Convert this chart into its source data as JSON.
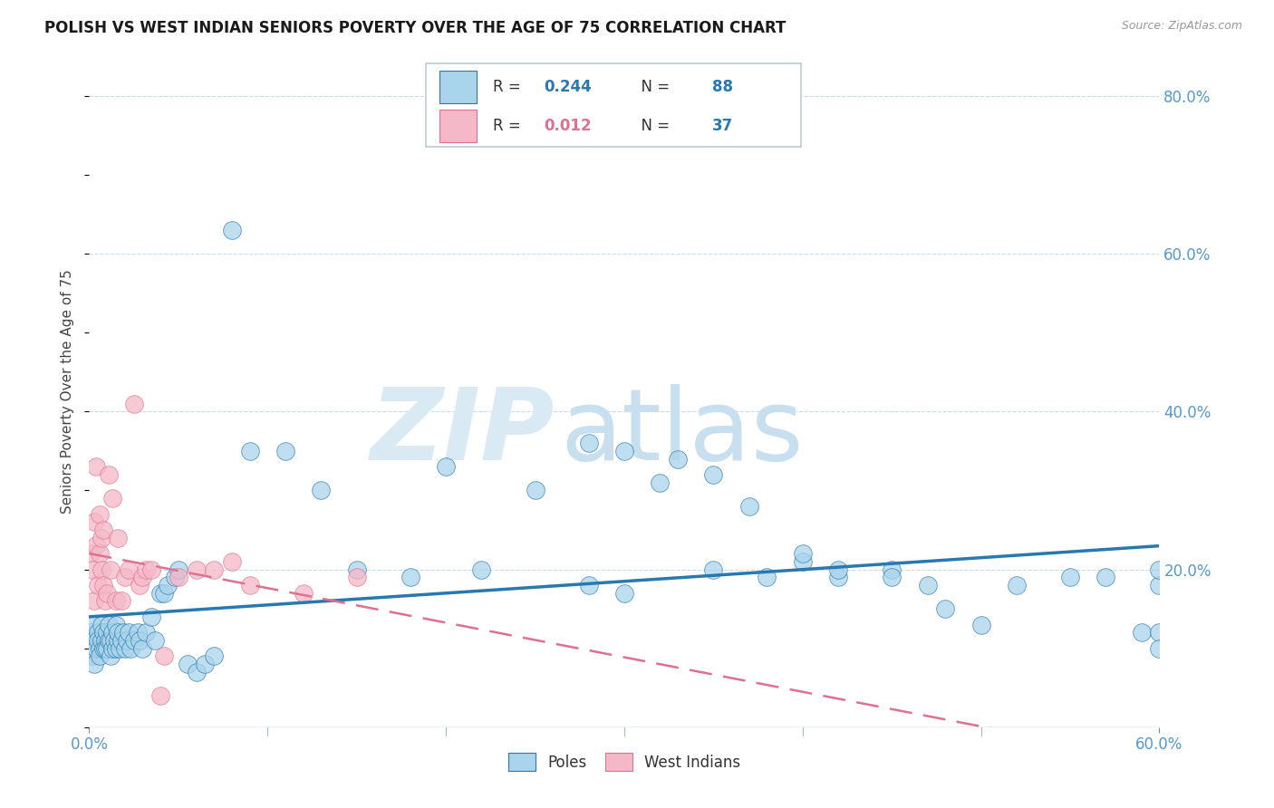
{
  "title": "POLISH VS WEST INDIAN SENIORS POVERTY OVER THE AGE OF 75 CORRELATION CHART",
  "source": "Source: ZipAtlas.com",
  "ylabel": "Seniors Poverty Over the Age of 75",
  "xlim": [
    0.0,
    0.6
  ],
  "ylim": [
    0.0,
    0.85
  ],
  "yticks": [
    0.0,
    0.2,
    0.4,
    0.6,
    0.8
  ],
  "poles_R": 0.244,
  "poles_N": 88,
  "west_indians_R": 0.012,
  "west_indians_N": 37,
  "poles_color": "#aad4ec",
  "west_indians_color": "#f5b8c8",
  "poles_line_color": "#2979b0",
  "west_indians_line_color": "#e07090",
  "poles_R_color": "#2979b0",
  "poles_N_color": "#2979b0",
  "west_indians_R_color": "#e07090",
  "west_indians_N_color": "#2979b0",
  "tick_color": "#5599cc",
  "background_color": "#ffffff",
  "watermark_zip_color": "#daeaf5",
  "watermark_atlas_color": "#c8dff0",
  "grid_color": "#c8dde8",
  "poles_x": [
    0.001,
    0.002,
    0.002,
    0.003,
    0.003,
    0.004,
    0.005,
    0.005,
    0.006,
    0.006,
    0.007,
    0.007,
    0.008,
    0.008,
    0.009,
    0.009,
    0.01,
    0.01,
    0.011,
    0.011,
    0.012,
    0.012,
    0.013,
    0.013,
    0.014,
    0.015,
    0.015,
    0.016,
    0.016,
    0.017,
    0.018,
    0.019,
    0.02,
    0.021,
    0.022,
    0.023,
    0.025,
    0.027,
    0.028,
    0.03,
    0.032,
    0.035,
    0.037,
    0.04,
    0.042,
    0.044,
    0.048,
    0.05,
    0.055,
    0.06,
    0.065,
    0.07,
    0.08,
    0.09,
    0.11,
    0.13,
    0.15,
    0.18,
    0.2,
    0.22,
    0.25,
    0.28,
    0.3,
    0.32,
    0.35,
    0.38,
    0.4,
    0.42,
    0.45,
    0.47,
    0.5,
    0.52,
    0.55,
    0.57,
    0.59,
    0.6,
    0.6,
    0.6,
    0.28,
    0.3,
    0.33,
    0.35,
    0.37,
    0.4,
    0.42,
    0.45,
    0.48,
    0.6
  ],
  "poles_y": [
    0.12,
    0.09,
    0.13,
    0.11,
    0.08,
    0.1,
    0.12,
    0.11,
    0.1,
    0.09,
    0.11,
    0.13,
    0.1,
    0.12,
    0.11,
    0.1,
    0.12,
    0.1,
    0.11,
    0.13,
    0.09,
    0.11,
    0.1,
    0.12,
    0.11,
    0.1,
    0.13,
    0.11,
    0.12,
    0.1,
    0.11,
    0.12,
    0.1,
    0.11,
    0.12,
    0.1,
    0.11,
    0.12,
    0.11,
    0.1,
    0.12,
    0.14,
    0.11,
    0.17,
    0.17,
    0.18,
    0.19,
    0.2,
    0.08,
    0.07,
    0.08,
    0.09,
    0.63,
    0.35,
    0.35,
    0.3,
    0.2,
    0.19,
    0.33,
    0.2,
    0.3,
    0.18,
    0.17,
    0.31,
    0.2,
    0.19,
    0.21,
    0.19,
    0.2,
    0.18,
    0.13,
    0.18,
    0.19,
    0.19,
    0.12,
    0.18,
    0.12,
    0.1,
    0.36,
    0.35,
    0.34,
    0.32,
    0.28,
    0.22,
    0.2,
    0.19,
    0.15,
    0.2
  ],
  "west_indians_x": [
    0.001,
    0.002,
    0.003,
    0.003,
    0.004,
    0.004,
    0.005,
    0.006,
    0.006,
    0.007,
    0.007,
    0.008,
    0.008,
    0.009,
    0.01,
    0.011,
    0.012,
    0.013,
    0.015,
    0.016,
    0.018,
    0.02,
    0.022,
    0.025,
    0.028,
    0.03,
    0.032,
    0.035,
    0.04,
    0.042,
    0.05,
    0.06,
    0.07,
    0.08,
    0.09,
    0.12,
    0.15
  ],
  "west_indians_y": [
    0.22,
    0.2,
    0.26,
    0.16,
    0.33,
    0.23,
    0.18,
    0.27,
    0.22,
    0.2,
    0.24,
    0.18,
    0.25,
    0.16,
    0.17,
    0.32,
    0.2,
    0.29,
    0.16,
    0.24,
    0.16,
    0.19,
    0.2,
    0.41,
    0.18,
    0.19,
    0.2,
    0.2,
    0.04,
    0.09,
    0.19,
    0.2,
    0.2,
    0.21,
    0.18,
    0.17,
    0.19
  ]
}
